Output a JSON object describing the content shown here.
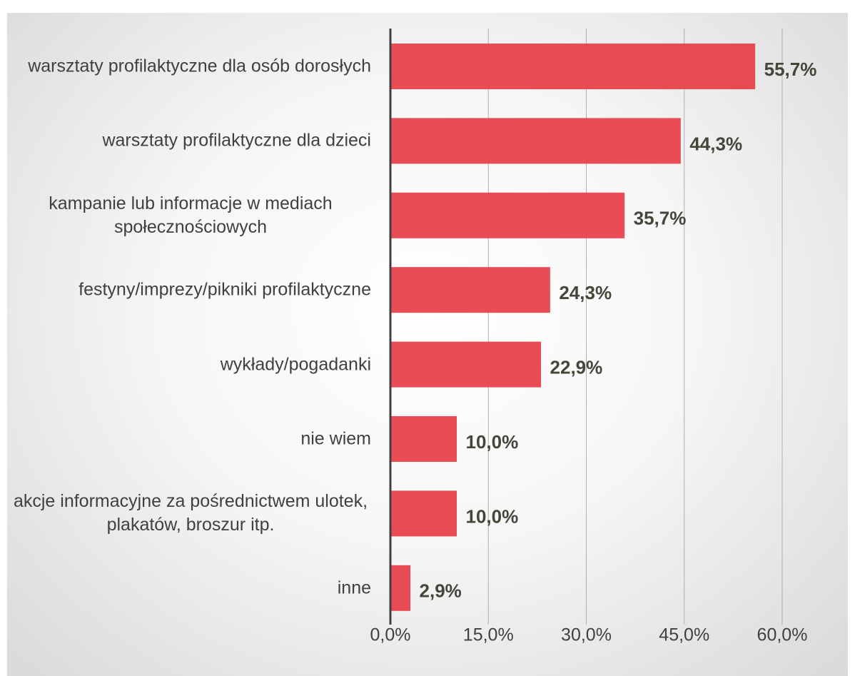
{
  "chart_data": {
    "type": "bar",
    "orientation": "horizontal",
    "categories": [
      "warsztaty profilaktyczne dla osób dorosłych",
      "warsztaty profilaktyczne dla dzieci",
      "kampanie lub informacje w mediach społecznościowych",
      "festyny/imprezy/pikniki profilaktyczne",
      "wykłady/pogadanki",
      "nie wiem",
      "akcje informacyjne za pośrednictwem ulotek, plakatów, broszur itp.",
      "inne"
    ],
    "values": [
      55.7,
      44.3,
      35.7,
      24.3,
      22.9,
      10.0,
      10.0,
      2.9
    ],
    "value_labels": [
      "55,7%",
      "44,3%",
      "35,7%",
      "24,3%",
      "22,9%",
      "10,0%",
      "10,0%",
      "2,9%"
    ],
    "color": "#e8424c",
    "xlim": [
      0,
      60
    ],
    "xticks": [
      {
        "value": 0,
        "label": "0,0%"
      },
      {
        "value": 15,
        "label": "15,0%"
      },
      {
        "value": 30,
        "label": "30,0%"
      },
      {
        "value": 45,
        "label": "45,0%"
      },
      {
        "value": 60,
        "label": "60,0%"
      }
    ],
    "grid": true
  }
}
